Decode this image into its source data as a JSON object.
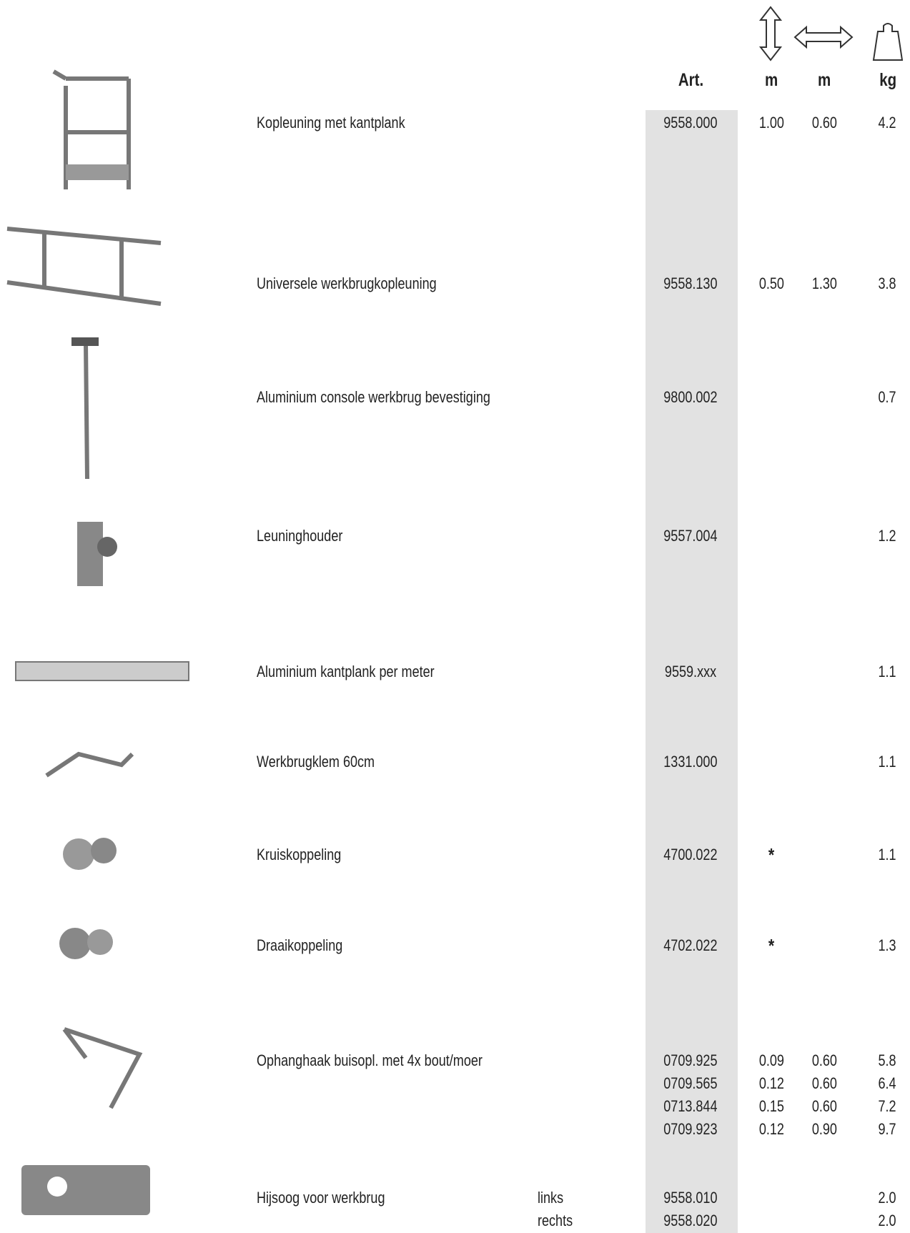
{
  "header": {
    "art": "Art.",
    "height_unit": "m",
    "width_unit": "m",
    "weight_unit": "kg"
  },
  "rows": [
    {
      "name": "Kopleuning met kantplank",
      "items": [
        {
          "art": "9558.000",
          "height": "1.00",
          "width": "0.60",
          "weight": "4.2"
        }
      ]
    },
    {
      "name": "Universele werkbrugkopleuning",
      "items": [
        {
          "art": "9558.130",
          "height": "0.50",
          "width": "1.30",
          "weight": "3.8"
        }
      ]
    },
    {
      "name": "Aluminium console werkbrug bevestiging",
      "items": [
        {
          "art": "9800.002",
          "weight": "0.7"
        }
      ]
    },
    {
      "name": "Leuninghouder",
      "items": [
        {
          "art": "9557.004",
          "weight": "1.2"
        }
      ]
    },
    {
      "name": "Aluminium kantplank per meter",
      "items": [
        {
          "art": "9559.xxx",
          "weight": "1.1"
        }
      ]
    },
    {
      "name": "Werkbrugklem 60cm",
      "items": [
        {
          "art": "1331.000",
          "weight": "1.1"
        }
      ]
    },
    {
      "name": "Kruiskoppeling",
      "items": [
        {
          "art": "4700.022",
          "height": "*",
          "weight": "1.1"
        }
      ]
    },
    {
      "name": "Draaikoppeling",
      "items": [
        {
          "art": "4702.022",
          "height": "*",
          "weight": "1.3"
        }
      ]
    },
    {
      "name": "Ophanghaak buisopl. met 4x bout/moer",
      "items": [
        {
          "art": "0709.925",
          "height": "0.09",
          "width": "0.60",
          "weight": "5.8"
        },
        {
          "art": "0709.565",
          "height": "0.12",
          "width": "0.60",
          "weight": "6.4"
        },
        {
          "art": "0713.844",
          "height": "0.15",
          "width": "0.60",
          "weight": "7.2"
        },
        {
          "art": "0709.923",
          "height": "0.12",
          "width": "0.90",
          "weight": "9.7"
        }
      ]
    },
    {
      "name": "Hijsoog voor werkbrug",
      "items": [
        {
          "variant": "links",
          "art": "9558.010",
          "weight": "2.0"
        },
        {
          "variant": "rechts",
          "art": "9558.020",
          "weight": "2.0"
        }
      ]
    }
  ]
}
